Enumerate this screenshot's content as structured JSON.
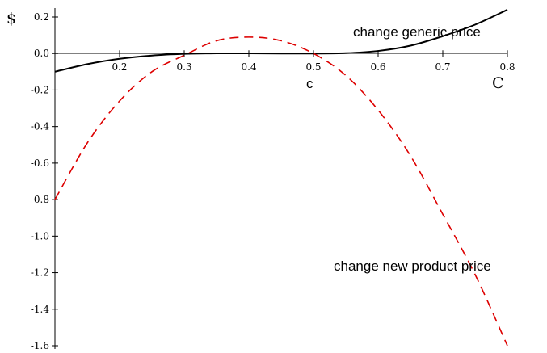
{
  "chart_data": {
    "type": "line",
    "title": "",
    "xlabel_small": "c",
    "xlabel_large": "C",
    "ylabel": "$",
    "xlim": [
      0.1,
      0.8
    ],
    "ylim": [
      -1.6,
      0.2
    ],
    "xticks": [
      0.2,
      0.3,
      0.4,
      0.5,
      0.6,
      0.7,
      0.8
    ],
    "yticks": [
      0.2,
      0.0,
      -0.2,
      -0.4,
      -0.6,
      -0.8,
      -1.0,
      -1.2,
      -1.4,
      -1.6
    ],
    "xtick_labels": [
      "0.2",
      "0.3",
      "0.4",
      "0.5",
      "0.6",
      "0.7",
      "0.8"
    ],
    "ytick_labels": [
      "0.2",
      "0.0",
      "-0.2",
      "-0.4",
      "-0.6",
      "-0.8",
      "-1.0",
      "-1.2",
      "-1.4",
      "-1.6"
    ],
    "grid": false,
    "series": [
      {
        "name": "change generic price",
        "style": "solid",
        "color": "#000000",
        "x": [
          0.1,
          0.15,
          0.2,
          0.25,
          0.3,
          0.35,
          0.4,
          0.45,
          0.5,
          0.55,
          0.6,
          0.65,
          0.7,
          0.75,
          0.8
        ],
        "y": [
          -0.1,
          -0.058,
          -0.029,
          -0.011,
          -0.002,
          0.001,
          0.001,
          0.0,
          0.0,
          0.002,
          0.014,
          0.043,
          0.095,
          0.158,
          0.24
        ]
      },
      {
        "name": "change new product price",
        "style": "dashed",
        "color": "#dd0000",
        "x": [
          0.1,
          0.15,
          0.2,
          0.25,
          0.3,
          0.35,
          0.4,
          0.45,
          0.5,
          0.55,
          0.6,
          0.65,
          0.7,
          0.75,
          0.8
        ],
        "y": [
          -0.8,
          -0.49,
          -0.26,
          -0.1,
          -0.01,
          0.07,
          0.09,
          0.07,
          0.0,
          -0.12,
          -0.31,
          -0.56,
          -0.88,
          -1.21,
          -1.6
        ]
      }
    ]
  }
}
